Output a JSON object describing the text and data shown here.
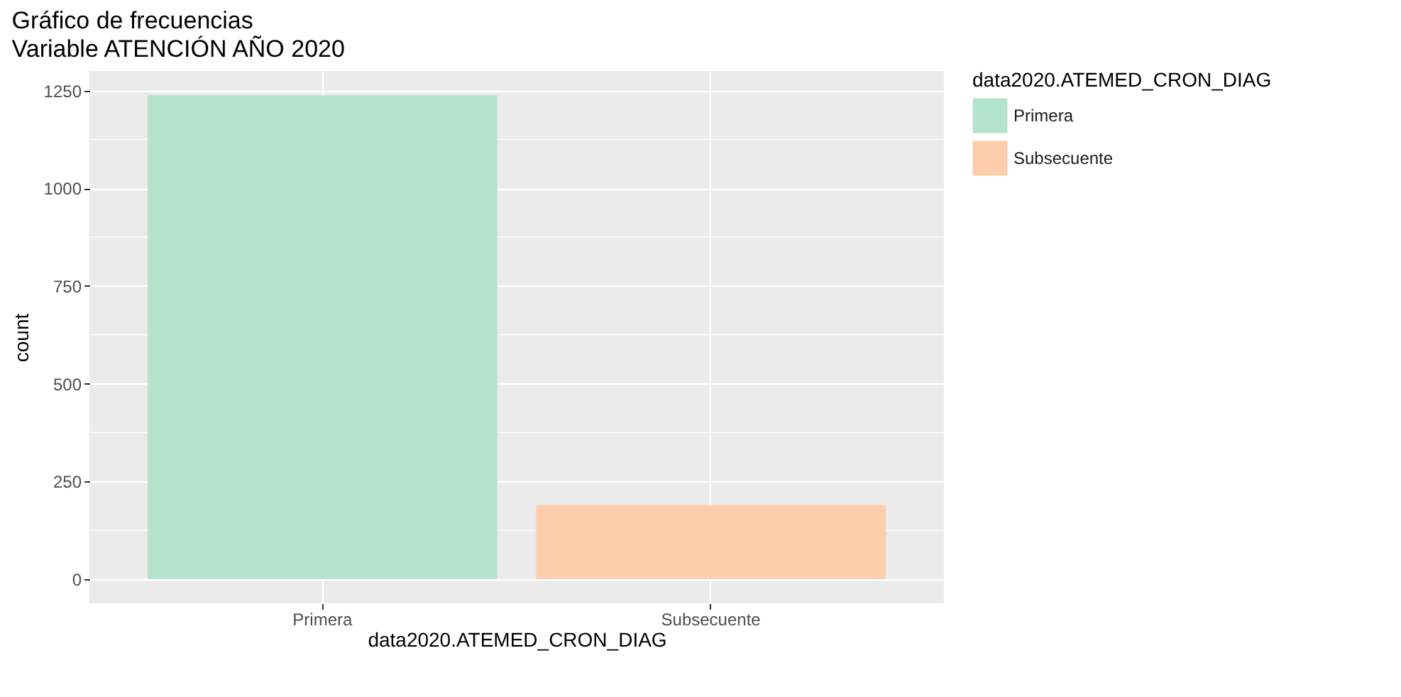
{
  "chart_data": {
    "type": "bar",
    "title": "Gráfico de frecuencias\n Variable ATENCIÓN AÑO 2020",
    "xlabel": "data2020.ATEMED_CRON_DIAG",
    "ylabel": "count",
    "legend_title": "data2020.ATEMED_CRON_DIAG",
    "categories": [
      "Primera",
      "Subsecuente"
    ],
    "series": [
      {
        "name": "Primera",
        "color": "#b3e2cd",
        "values": [
          1238,
          null
        ]
      },
      {
        "name": "Subsecuente",
        "color": "#fdcdac",
        "values": [
          null,
          189
        ]
      }
    ],
    "ylim": [
      -62,
      1300
    ],
    "yticks": [
      0,
      250,
      500,
      750,
      1000,
      1250
    ],
    "grid": true,
    "legend": "right"
  }
}
